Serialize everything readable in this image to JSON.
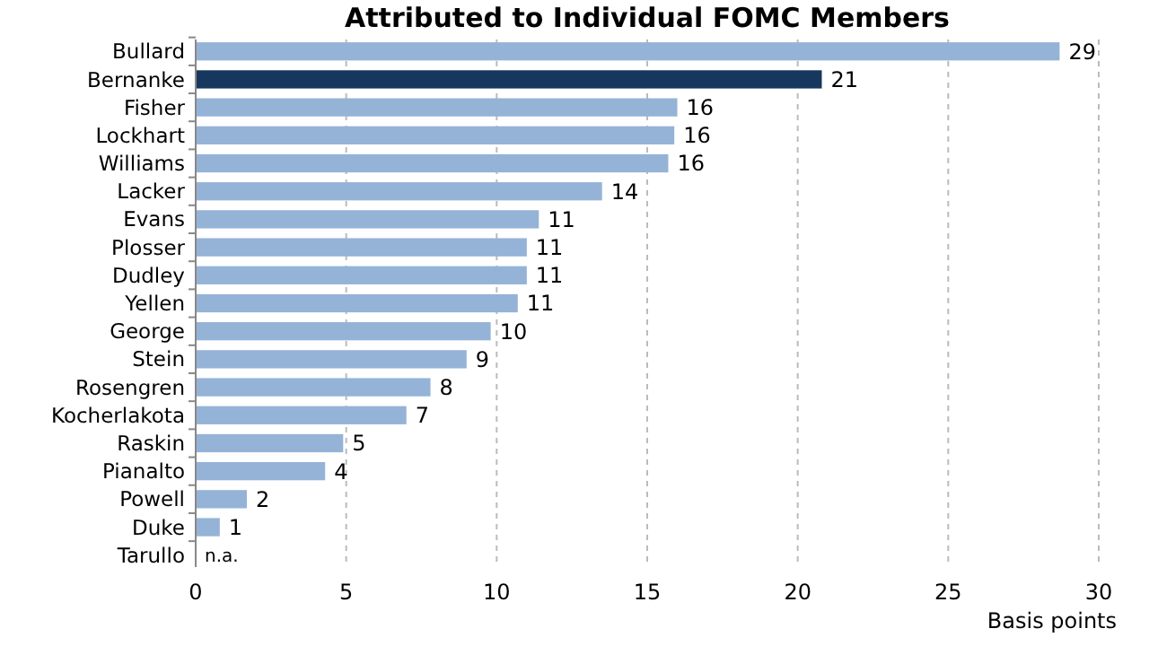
{
  "chart_data": {
    "type": "bar",
    "orientation": "horizontal",
    "title": "Attributed to Individual FOMC Members",
    "xlabel": "Basis points",
    "categories": [
      "Bullard",
      "Bernanke",
      "Fisher",
      "Lockhart",
      "Williams",
      "Lacker",
      "Evans",
      "Plosser",
      "Dudley",
      "Yellen",
      "George",
      "Stein",
      "Rosengren",
      "Kocherlakota",
      "Raskin",
      "Pianalto",
      "Powell",
      "Duke",
      "Tarullo"
    ],
    "values": [
      28.7,
      20.8,
      16.0,
      15.9,
      15.7,
      13.5,
      11.4,
      11.0,
      11.0,
      10.7,
      9.8,
      9.0,
      7.8,
      7.0,
      4.9,
      4.3,
      1.7,
      0.8,
      null
    ],
    "value_labels": [
      "29",
      "21",
      "16",
      "16",
      "16",
      "14",
      "11",
      "11",
      "11",
      "11",
      "10",
      "9",
      "8",
      "7",
      "5",
      "4",
      "2",
      "1",
      "n.a."
    ],
    "colors": [
      "#95b3d7",
      "#17375e",
      "#95b3d7",
      "#95b3d7",
      "#95b3d7",
      "#95b3d7",
      "#95b3d7",
      "#95b3d7",
      "#95b3d7",
      "#95b3d7",
      "#95b3d7",
      "#95b3d7",
      "#95b3d7",
      "#95b3d7",
      "#95b3d7",
      "#95b3d7",
      "#95b3d7",
      "#95b3d7",
      null
    ],
    "xlim": [
      0,
      30
    ],
    "xticks": [
      0,
      5,
      10,
      15,
      20,
      25,
      30
    ],
    "grid": "x"
  }
}
